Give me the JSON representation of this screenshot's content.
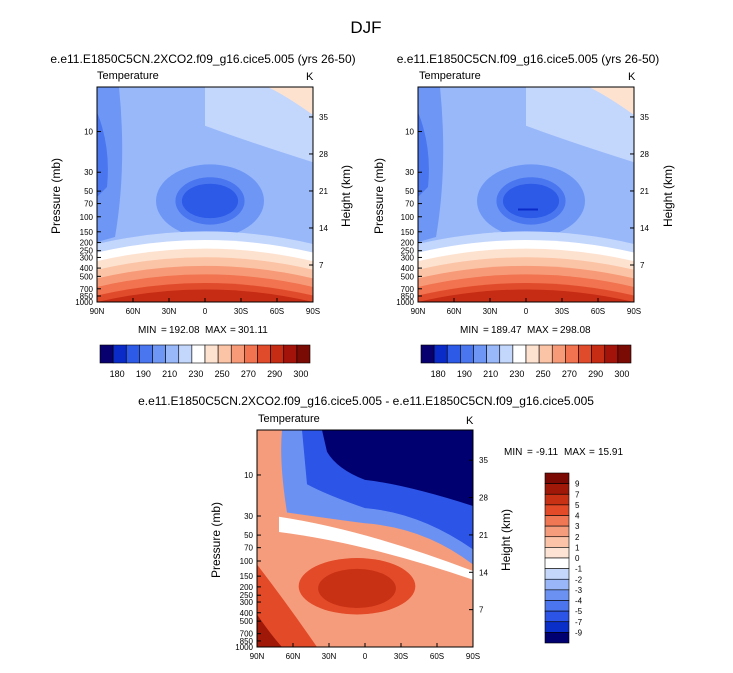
{
  "season_title": "DJF",
  "colors": {
    "abs_levels": [
      "#08006e",
      "#0a2bc8",
      "#2d5ae6",
      "#4a76f0",
      "#6e96f5",
      "#98b8fa",
      "#c3d6fc",
      "#ffffff",
      "#fde2d0",
      "#fbc4a6",
      "#f79a78",
      "#f1734f",
      "#e04b2c",
      "#c62b13",
      "#a3130a",
      "#7a0a04"
    ],
    "diff_levels": [
      "#000070",
      "#0a2fc8",
      "#2c54e6",
      "#4b74ef",
      "#6b92f3",
      "#98b6f8",
      "#c5d8fb",
      "#ffffff",
      "#fde3d4",
      "#fbc3a8",
      "#f59c7c",
      "#ef7753",
      "#e24a28",
      "#c83114",
      "#a01808",
      "#7b0a04"
    ]
  },
  "chart_data": [
    {
      "id": "panel-2xco2",
      "type": "heatmap",
      "title": "e.e11.E1850C5CN.2XCO2.f09_g16.cice5.005 (yrs 26-50)",
      "variable_label": "Temperature",
      "units_label": "K",
      "ylabel": "Pressure (mb)",
      "right_ylabel": "Height (km)",
      "x_ticks": [
        "90N",
        "60N",
        "30N",
        "0",
        "30S",
        "60S",
        "90S"
      ],
      "y_ticks": [
        "10",
        "30",
        "50",
        "70",
        "100",
        "150",
        "200",
        "250",
        "300",
        "400",
        "500",
        "700",
        "850",
        "1000"
      ],
      "y_tick_values": [
        10,
        30,
        50,
        70,
        100,
        150,
        200,
        250,
        300,
        400,
        500,
        700,
        850,
        1000
      ],
      "height_ticks": [
        "35",
        "28",
        "21",
        "14",
        "7"
      ],
      "height_tick_values": [
        35,
        28,
        21,
        14,
        7
      ],
      "min": "192.08",
      "max": "301.11",
      "min_label": "MIN",
      "max_label": "MAX",
      "colorbar_labels": [
        "180",
        "190",
        "210",
        "230",
        "250",
        "270",
        "290",
        "300"
      ]
    },
    {
      "id": "panel-control",
      "type": "heatmap",
      "title": "e.e11.E1850C5CN.f09_g16.cice5.005 (yrs 26-50)",
      "variable_label": "Temperature",
      "units_label": "K",
      "ylabel": "Pressure (mb)",
      "right_ylabel": "Height (km)",
      "x_ticks": [
        "90N",
        "60N",
        "30N",
        "0",
        "30S",
        "60S",
        "90S"
      ],
      "y_ticks": [
        "10",
        "30",
        "50",
        "70",
        "100",
        "150",
        "200",
        "250",
        "300",
        "400",
        "500",
        "700",
        "850",
        "1000"
      ],
      "y_tick_values": [
        10,
        30,
        50,
        70,
        100,
        150,
        200,
        250,
        300,
        400,
        500,
        700,
        850,
        1000
      ],
      "height_ticks": [
        "35",
        "28",
        "21",
        "14",
        "7"
      ],
      "height_tick_values": [
        35,
        28,
        21,
        14,
        7
      ],
      "min": "189.47",
      "max": "298.08",
      "min_label": "MIN",
      "max_label": "MAX",
      "colorbar_labels": [
        "180",
        "190",
        "210",
        "230",
        "250",
        "270",
        "290",
        "300"
      ]
    },
    {
      "id": "panel-diff",
      "type": "heatmap",
      "title": "e.e11.E1850C5CN.2XCO2.f09_g16.cice5.005 - e.e11.E1850C5CN.f09_g16.cice5.005",
      "variable_label": "Temperature",
      "units_label": "K",
      "ylabel": "Pressure (mb)",
      "right_ylabel": "Height (km)",
      "x_ticks": [
        "90N",
        "60N",
        "30N",
        "0",
        "30S",
        "60S",
        "90S"
      ],
      "y_ticks": [
        "10",
        "30",
        "50",
        "70",
        "100",
        "150",
        "200",
        "250",
        "300",
        "400",
        "500",
        "700",
        "850",
        "1000"
      ],
      "y_tick_values": [
        10,
        30,
        50,
        70,
        100,
        150,
        200,
        250,
        300,
        400,
        500,
        700,
        850,
        1000
      ],
      "height_ticks": [
        "35",
        "28",
        "21",
        "14",
        "7"
      ],
      "height_tick_values": [
        35,
        28,
        21,
        14,
        7
      ],
      "min": "-9.11",
      "max": "15.91",
      "min_label": "MIN",
      "max_label": "MAX",
      "colorbar_labels": [
        "9",
        "7",
        "5",
        "4",
        "3",
        "2",
        "1",
        "0",
        "-1",
        "-2",
        "-3",
        "-4",
        "-5",
        "-7",
        "-9"
      ]
    }
  ]
}
